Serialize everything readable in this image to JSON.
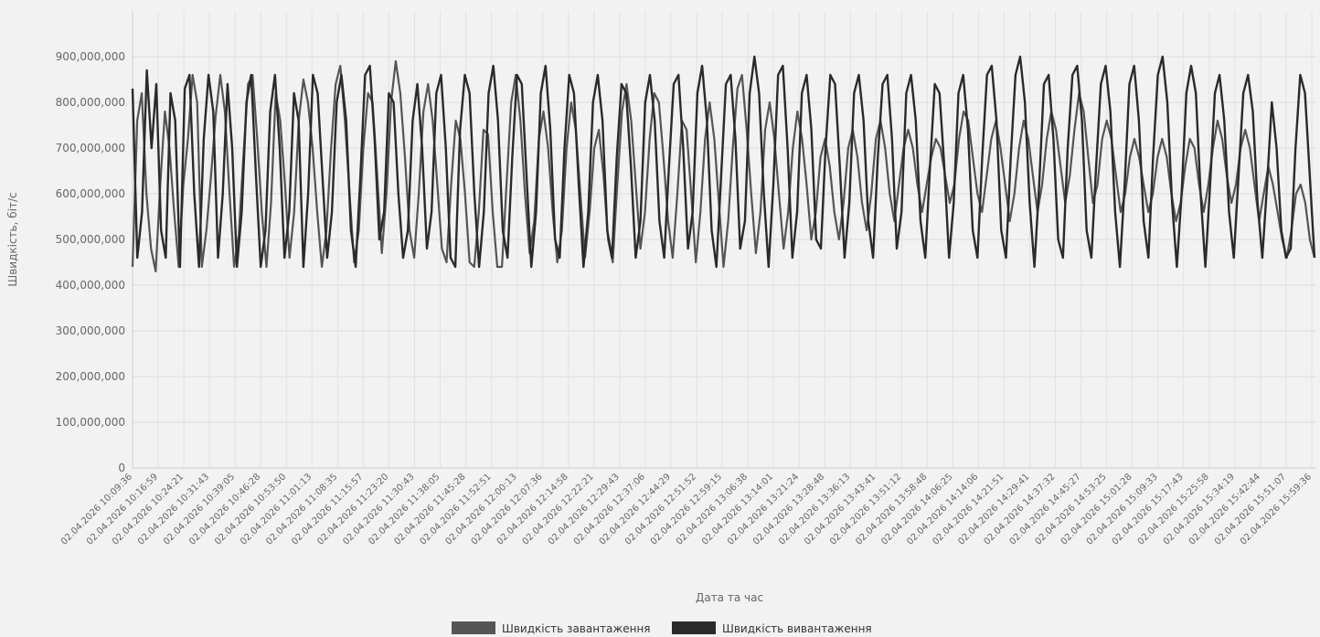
{
  "chart_data": {
    "type": "line",
    "title": "",
    "ylabel": "Швидкість, біт/с",
    "xlabel": "Дата та час",
    "ylim": [
      0,
      900000000
    ],
    "yticks": [
      0,
      100000000,
      200000000,
      300000000,
      400000000,
      500000000,
      600000000,
      700000000,
      800000000,
      900000000
    ],
    "ytick_labels": [
      "0",
      "100,000,000",
      "200,000,000",
      "300,000,000",
      "400,000,000",
      "500,000,000",
      "600,000,000",
      "700,000,000",
      "800,000,000",
      "900,000,000"
    ],
    "x_tick_labels": [
      "02.04.2026 10:09:36",
      "02.04.2026 10:16:59",
      "02.04.2026 10:24:21",
      "02.04.2026 10:31:43",
      "02.04.2026 10:39:05",
      "02.04.2026 10:46:28",
      "02.04.2026 10:53:50",
      "02.04.2026 11:01:13",
      "02.04.2026 11:08:35",
      "02.04.2026 11:15:57",
      "02.04.2026 11:23:20",
      "02.04.2026 11:30:43",
      "02.04.2026 11:38:05",
      "02.04.2026 11:45:28",
      "02.04.2026 11:52:51",
      "02.04.2026 12:00:13",
      "02.04.2026 12:07:36",
      "02.04.2026 12:14:58",
      "02.04.2026 12:22:21",
      "02.04.2026 12:29:43",
      "02.04.2026 12:37:06",
      "02.04.2026 12:44:29",
      "02.04.2026 12:51:52",
      "02.04.2026 12:59:15",
      "02.04.2026 13:06:38",
      "02.04.2026 13:14:01",
      "02.04.2026 13:21:24",
      "02.04.2026 13:28:48",
      "02.04.2026 13:36:13",
      "02.04.2026 13:43:41",
      "02.04.2026 13:51:12",
      "02.04.2026 13:58:48",
      "02.04.2026 14:06:25",
      "02.04.2026 14:14:06",
      "02.04.2026 14:21:51",
      "02.04.2026 14:29:41",
      "02.04.2026 14:37:32",
      "02.04.2026 14:45:27",
      "02.04.2026 14:53:25",
      "02.04.2026 15:01:28",
      "02.04.2026 15:09:33",
      "02.04.2026 15:17:43",
      "02.04.2026 15:25:58",
      "02.04.2026 15:34:19",
      "02.04.2026 15:42:44",
      "02.04.2026 15:51:07",
      "02.04.2026 15:59:36"
    ],
    "series": [
      {
        "name": "Швидкість завантаження",
        "color": "#555555",
        "values": [
          440,
          760,
          820,
          600,
          480,
          430,
          620,
          780,
          700,
          560,
          440,
          620,
          720,
          860,
          800,
          440,
          520,
          640,
          770,
          860,
          780,
          600,
          440,
          510,
          680,
          840,
          860,
          720,
          560,
          440,
          580,
          820,
          760,
          620,
          460,
          560,
          760,
          850,
          800,
          700,
          560,
          440,
          520,
          700,
          840,
          880,
          760,
          600,
          450,
          520,
          700,
          820,
          800,
          640,
          470,
          600,
          800,
          890,
          820,
          680,
          520,
          460,
          600,
          780,
          840,
          760,
          620,
          480,
          450,
          620,
          760,
          720,
          600,
          450,
          440,
          560,
          740,
          730,
          560,
          440,
          440,
          620,
          800,
          860,
          760,
          600,
          470,
          540,
          720,
          780,
          700,
          560,
          450,
          520,
          700,
          800,
          740,
          600,
          460,
          560,
          700,
          740,
          640,
          500,
          450,
          620,
          780,
          840,
          760,
          620,
          480,
          560,
          720,
          820,
          800,
          680,
          540,
          460,
          600,
          760,
          740,
          600,
          450,
          560,
          720,
          800,
          720,
          580,
          440,
          540,
          700,
          830,
          860,
          740,
          600,
          470,
          560,
          740,
          800,
          720,
          600,
          480,
          560,
          700,
          780,
          720,
          620,
          500,
          560,
          680,
          720,
          660,
          560,
          500,
          580,
          700,
          740,
          680,
          580,
          520,
          600,
          720,
          760,
          700,
          600,
          540,
          620,
          700,
          740,
          700,
          620,
          560,
          620,
          680,
          720,
          700,
          640,
          580,
          620,
          720,
          780,
          760,
          680,
          600,
          560,
          640,
          720,
          760,
          700,
          620,
          540,
          600,
          700,
          760,
          720,
          640,
          560,
          620,
          720,
          780,
          740,
          660,
          580,
          640,
          740,
          820,
          780,
          680,
          580,
          620,
          720,
          760,
          720,
          640,
          560,
          600,
          680,
          720,
          680,
          620,
          560,
          600,
          680,
          720,
          680,
          600,
          540,
          580,
          660,
          720,
          700,
          620,
          560,
          620,
          700,
          760,
          720,
          640,
          580,
          620,
          700,
          740,
          700,
          620,
          540,
          600,
          660,
          620,
          560,
          500,
          460,
          520,
          600,
          620,
          580,
          500,
          460
        ]
      },
      {
        "name": "Швидкість вивантаження",
        "color": "#2a2a2a",
        "values": [
          830,
          460,
          560,
          870,
          700,
          840,
          520,
          460,
          820,
          760,
          440,
          830,
          860,
          600,
          440,
          720,
          860,
          780,
          460,
          600,
          840,
          700,
          440,
          560,
          800,
          860,
          640,
          440,
          520,
          780,
          860,
          700,
          460,
          560,
          820,
          760,
          440,
          600,
          860,
          820,
          640,
          460,
          560,
          800,
          860,
          760,
          520,
          440,
          640,
          860,
          880,
          720,
          500,
          560,
          820,
          800,
          600,
          460,
          520,
          760,
          840,
          700,
          480,
          560,
          820,
          860,
          700,
          460,
          440,
          740,
          860,
          820,
          600,
          440,
          560,
          820,
          880,
          760,
          520,
          460,
          680,
          860,
          840,
          640,
          440,
          560,
          820,
          880,
          740,
          500,
          460,
          700,
          860,
          820,
          620,
          440,
          560,
          800,
          860,
          760,
          520,
          460,
          680,
          840,
          820,
          660,
          460,
          540,
          800,
          860,
          760,
          540,
          460,
          660,
          840,
          860,
          700,
          480,
          560,
          820,
          880,
          760,
          520,
          440,
          640,
          840,
          860,
          720,
          480,
          540,
          820,
          900,
          820,
          600,
          440,
          620,
          860,
          880,
          700,
          460,
          560,
          820,
          860,
          740,
          500,
          480,
          700,
          860,
          840,
          660,
          460,
          580,
          820,
          860,
          760,
          540,
          460,
          680,
          840,
          860,
          720,
          480,
          560,
          820,
          860,
          760,
          540,
          460,
          660,
          840,
          820,
          660,
          460,
          580,
          820,
          860,
          740,
          520,
          460,
          680,
          860,
          880,
          760,
          520,
          460,
          680,
          860,
          900,
          800,
          580,
          440,
          620,
          840,
          860,
          720,
          500,
          460,
          700,
          860,
          880,
          760,
          520,
          460,
          660,
          840,
          880,
          780,
          560,
          440,
          620,
          840,
          880,
          760,
          540,
          460,
          680,
          860,
          900,
          800,
          580,
          440,
          600,
          820,
          880,
          820,
          600,
          440,
          620,
          820,
          860,
          760,
          560,
          460,
          640,
          820,
          860,
          780,
          580,
          460,
          620,
          800,
          700,
          520,
          460,
          480,
          700,
          860,
          820,
          640,
          460
        ]
      }
    ],
    "legend_position": "bottom-center",
    "grid": true
  }
}
